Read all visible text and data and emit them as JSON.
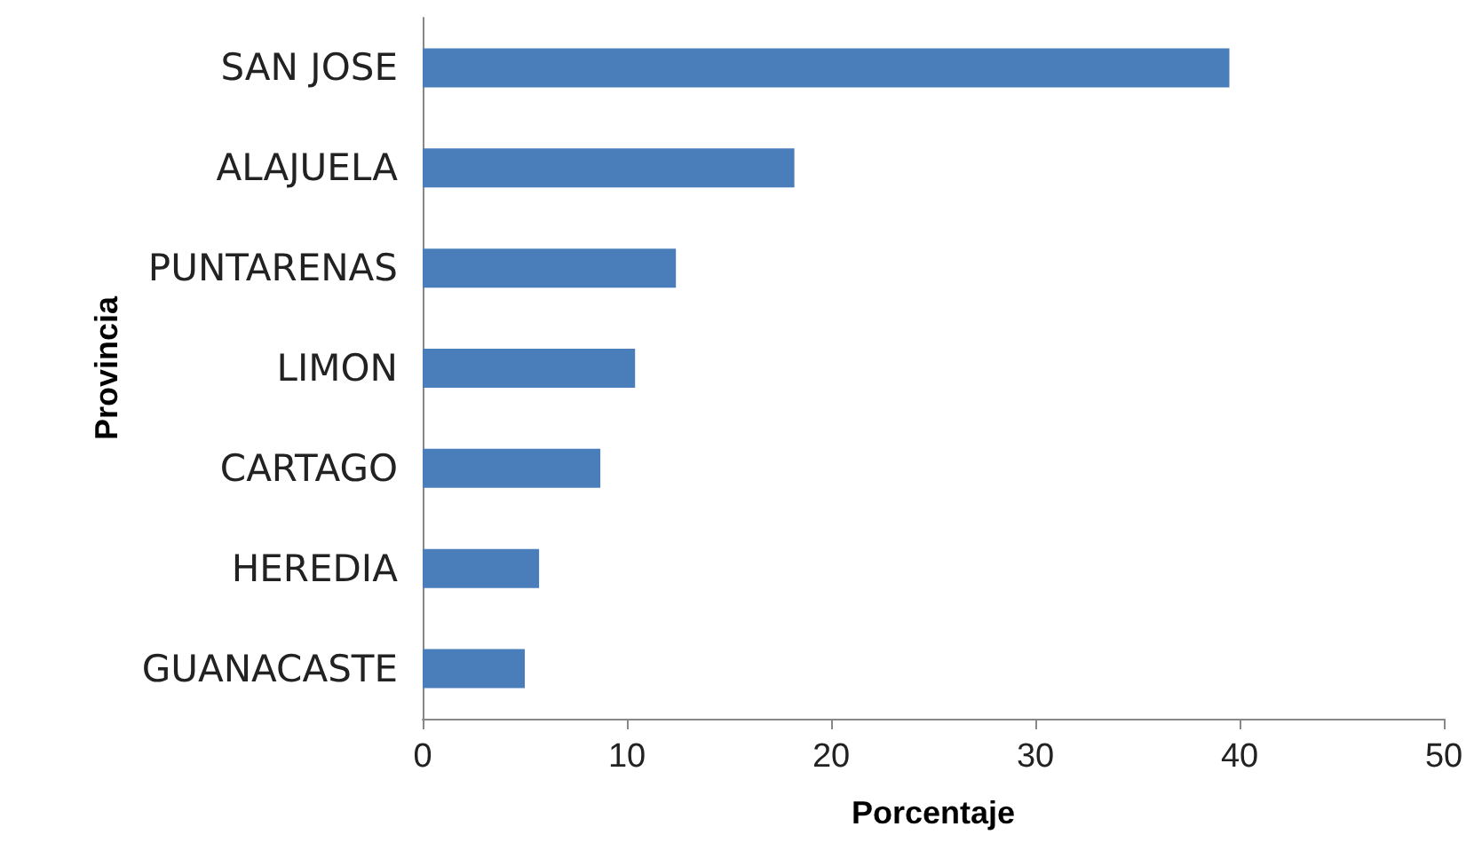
{
  "chart_data": {
    "type": "bar",
    "orientation": "horizontal",
    "categories": [
      "SAN JOSE",
      "ALAJUELA",
      "PUNTARENAS",
      "LIMON",
      "CARTAGO",
      "HEREDIA",
      "GUANACASTE"
    ],
    "values": [
      39.5,
      18.2,
      12.4,
      10.4,
      8.7,
      5.7,
      5.0
    ],
    "color": "#4a7ebb",
    "xlabel": "Porcentaje",
    "ylabel": "Provincia",
    "xlim": [
      0,
      50
    ],
    "xticks": [
      0,
      10,
      20,
      30,
      40,
      50
    ]
  }
}
